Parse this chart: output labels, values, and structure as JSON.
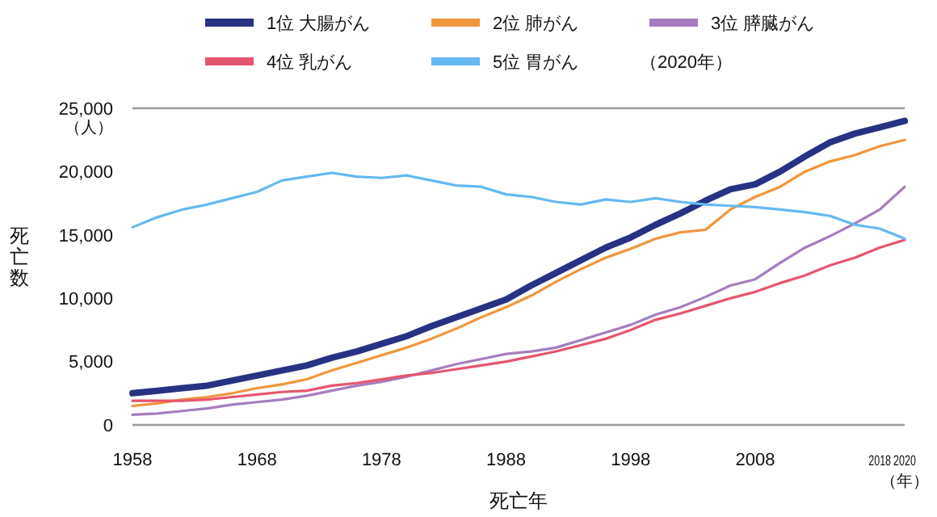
{
  "chart_data": {
    "type": "line",
    "xlabel": "死亡年",
    "ylabel": "死亡数",
    "legend_title": "（2020年）",
    "legend": "top",
    "grid": false,
    "marker": "none",
    "line_style": "solid",
    "annotations": [
      "（人）",
      "（年）"
    ],
    "x": [
      1958,
      1960,
      1962,
      1964,
      1966,
      1968,
      1970,
      1972,
      1974,
      1976,
      1978,
      1980,
      1982,
      1984,
      1986,
      1988,
      1990,
      1992,
      1994,
      1996,
      1998,
      2000,
      2002,
      2004,
      2006,
      2008,
      2010,
      2012,
      2014,
      2016,
      2018,
      2020
    ],
    "xlim": [
      1958,
      2020
    ],
    "xticks": [
      1958,
      1968,
      1978,
      1988,
      1998,
      2008,
      2018,
      2020
    ],
    "ylim": [
      0,
      25000
    ],
    "yticks": [
      {
        "value": 0,
        "label": "0"
      },
      {
        "value": 5000,
        "label": "5,000"
      },
      {
        "value": 10000,
        "label": "10,000"
      },
      {
        "value": 15000,
        "label": "15,000"
      },
      {
        "value": 20000,
        "label": "20,000"
      },
      {
        "value": 25000,
        "label": "25,000"
      }
    ],
    "series": [
      {
        "name": "1位 大腸がん",
        "color": "#283282",
        "values": [
          2500,
          2700,
          2900,
          3100,
          3500,
          3900,
          4300,
          4700,
          5300,
          5800,
          6400,
          7000,
          7800,
          8500,
          9200,
          9900,
          11000,
          12000,
          13000,
          14000,
          14800,
          15800,
          16700,
          17700,
          18600,
          19000,
          20000,
          21200,
          22300,
          23000,
          23500,
          24000
        ]
      },
      {
        "name": "2位 肺がん",
        "color": "#f0963c",
        "values": [
          1500,
          1700,
          2000,
          2200,
          2500,
          2900,
          3200,
          3600,
          4300,
          4900,
          5500,
          6100,
          6800,
          7600,
          8500,
          9300,
          10200,
          11300,
          12300,
          13200,
          13900,
          14700,
          15200,
          15400,
          17000,
          18000,
          18800,
          20000,
          20800,
          21300,
          22000,
          22500
        ]
      },
      {
        "name": "3位 膵臓がん",
        "color": "#a57dbe",
        "values": [
          800,
          900,
          1100,
          1300,
          1600,
          1800,
          2000,
          2300,
          2700,
          3100,
          3400,
          3800,
          4300,
          4800,
          5200,
          5600,
          5800,
          6100,
          6700,
          7300,
          7900,
          8700,
          9300,
          10100,
          11000,
          11500,
          12800,
          14000,
          14900,
          15900,
          17000,
          18800
        ]
      },
      {
        "name": "4位 乳がん",
        "color": "#e6556e",
        "values": [
          1900,
          1900,
          1900,
          2000,
          2200,
          2400,
          2600,
          2700,
          3100,
          3300,
          3600,
          3900,
          4100,
          4400,
          4700,
          5000,
          5400,
          5800,
          6300,
          6800,
          7500,
          8300,
          8800,
          9400,
          10000,
          10500,
          11200,
          11800,
          12600,
          13200,
          14000,
          14600
        ]
      },
      {
        "name": "5位 胃がん",
        "color": "#64b9f0",
        "values": [
          15600,
          16400,
          17000,
          17400,
          17900,
          18400,
          19300,
          19600,
          19900,
          19600,
          19500,
          19700,
          19300,
          18900,
          18800,
          18200,
          18000,
          17600,
          17400,
          17800,
          17600,
          17900,
          17600,
          17400,
          17300,
          17200,
          17000,
          16800,
          16500,
          15800,
          15500,
          14700
        ]
      }
    ]
  }
}
